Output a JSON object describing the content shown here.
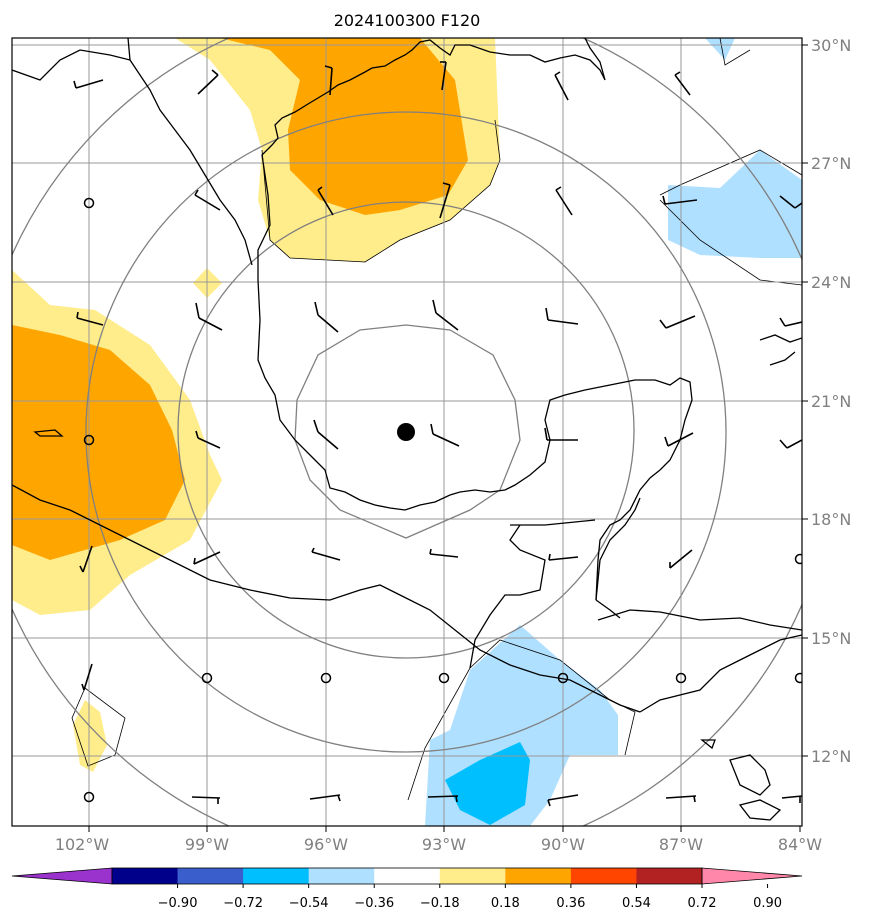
{
  "title": "2024100300 F120",
  "lat_ticks": [
    "30°N",
    "27°N",
    "24°N",
    "21°N",
    "18°N",
    "15°N",
    "12°N"
  ],
  "lon_ticks": [
    "102°W",
    "99°W",
    "96°W",
    "93°W",
    "90°W",
    "87°W",
    "84°W"
  ],
  "colorbar": {
    "labels": [
      "−0.90",
      "−0.72",
      "−0.54",
      "−0.36",
      "−0.18",
      "0.18",
      "0.36",
      "0.54",
      "0.72",
      "0.90"
    ],
    "colors": [
      "#9a32cd",
      "#00008b",
      "#3a5fcd",
      "#00bfff",
      "#b0e0ff",
      "#ffffff",
      "#ffec8b",
      "#ffa500",
      "#ff4500",
      "#b22222",
      "#ff88aa"
    ]
  },
  "fill_colors": {
    "light_yellow": "#ffec8b",
    "orange": "#ffa500",
    "light_blue": "#b0e0ff",
    "deep_sky_blue": "#00bfff"
  },
  "center_marker": "storm-center-dot"
}
